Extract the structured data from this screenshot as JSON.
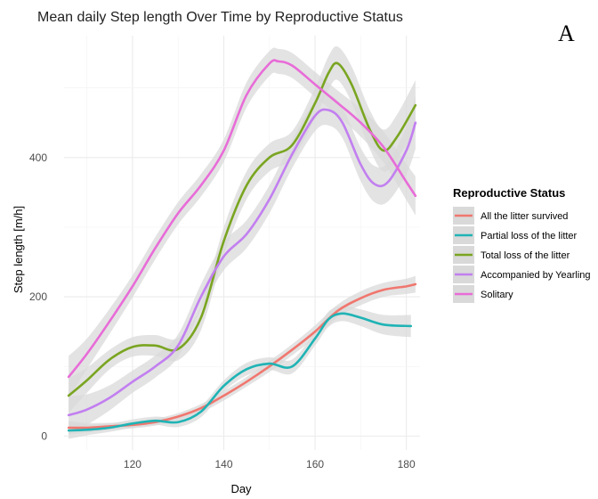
{
  "panel_label": "A",
  "chart_data": {
    "type": "line",
    "title": "Mean daily Step length Over Time by Reproductive Status",
    "xlabel": "Day",
    "ylabel": "Step length [m/h]",
    "xlim": [
      105,
      183
    ],
    "ylim": [
      -20,
      575
    ],
    "x_ticks": [
      120,
      140,
      160,
      180
    ],
    "y_ticks": [
      0,
      200,
      400
    ],
    "grid": true,
    "smoothed_with_confidence_band": true,
    "band_color": "#d9d9d9",
    "legend": {
      "title": "Reproductive Status",
      "position": "right"
    },
    "series": [
      {
        "name": "All the litter survived",
        "color": "#f0776f",
        "x": [
          106,
          110,
          115,
          120,
          125,
          130,
          135,
          140,
          145,
          150,
          155,
          160,
          165,
          170,
          175,
          180,
          182
        ],
        "values": [
          12,
          12,
          14,
          16,
          20,
          28,
          40,
          58,
          78,
          100,
          124,
          150,
          180,
          198,
          210,
          215,
          218
        ],
        "band": [
          10,
          7,
          5,
          5,
          5,
          5,
          6,
          7,
          7,
          8,
          8,
          9,
          9,
          10,
          10,
          11,
          12
        ]
      },
      {
        "name": "Partial loss of the litter",
        "color": "#1fb3b5",
        "x": [
          106,
          110,
          115,
          120,
          125,
          130,
          135,
          140,
          145,
          150,
          155,
          160,
          163,
          166,
          170,
          175,
          181
        ],
        "values": [
          8,
          9,
          12,
          18,
          22,
          20,
          35,
          72,
          96,
          104,
          100,
          140,
          168,
          176,
          170,
          160,
          158
        ],
        "band": [
          12,
          8,
          6,
          6,
          6,
          7,
          8,
          8,
          9,
          9,
          10,
          10,
          11,
          11,
          12,
          14,
          16
        ]
      },
      {
        "name": "Total loss of the litter",
        "color": "#7aa521",
        "x": [
          106,
          110,
          115,
          120,
          125,
          130,
          135,
          140,
          145,
          150,
          155,
          160,
          163,
          165,
          168,
          172,
          175,
          178,
          182
        ],
        "values": [
          58,
          80,
          110,
          128,
          130,
          125,
          170,
          280,
          360,
          400,
          418,
          478,
          522,
          535,
          505,
          440,
          410,
          430,
          475
        ],
        "band": [
          25,
          18,
          14,
          14,
          15,
          16,
          18,
          20,
          20,
          20,
          20,
          22,
          24,
          24,
          26,
          28,
          30,
          32,
          36
        ]
      },
      {
        "name": "Accompanied by Yearling",
        "color": "#c27ff0",
        "x": [
          106,
          110,
          115,
          120,
          125,
          130,
          135,
          140,
          145,
          150,
          155,
          160,
          163,
          166,
          170,
          173,
          176,
          180,
          182
        ],
        "values": [
          30,
          38,
          55,
          78,
          100,
          130,
          200,
          258,
          290,
          340,
          405,
          460,
          468,
          450,
          390,
          362,
          365,
          410,
          450
        ],
        "band": [
          28,
          22,
          18,
          16,
          16,
          16,
          18,
          20,
          20,
          20,
          20,
          22,
          22,
          22,
          24,
          26,
          28,
          34,
          38
        ]
      },
      {
        "name": "Solitary",
        "color": "#e86cd8",
        "x": [
          106,
          110,
          115,
          120,
          125,
          130,
          135,
          140,
          145,
          150,
          152,
          155,
          160,
          165,
          170,
          175,
          180,
          182
        ],
        "values": [
          85,
          118,
          165,
          215,
          270,
          320,
          360,
          410,
          490,
          535,
          538,
          532,
          505,
          478,
          450,
          415,
          365,
          345
        ],
        "band": [
          30,
          22,
          18,
          16,
          16,
          16,
          16,
          16,
          18,
          18,
          18,
          18,
          18,
          18,
          20,
          22,
          26,
          28
        ]
      }
    ]
  }
}
